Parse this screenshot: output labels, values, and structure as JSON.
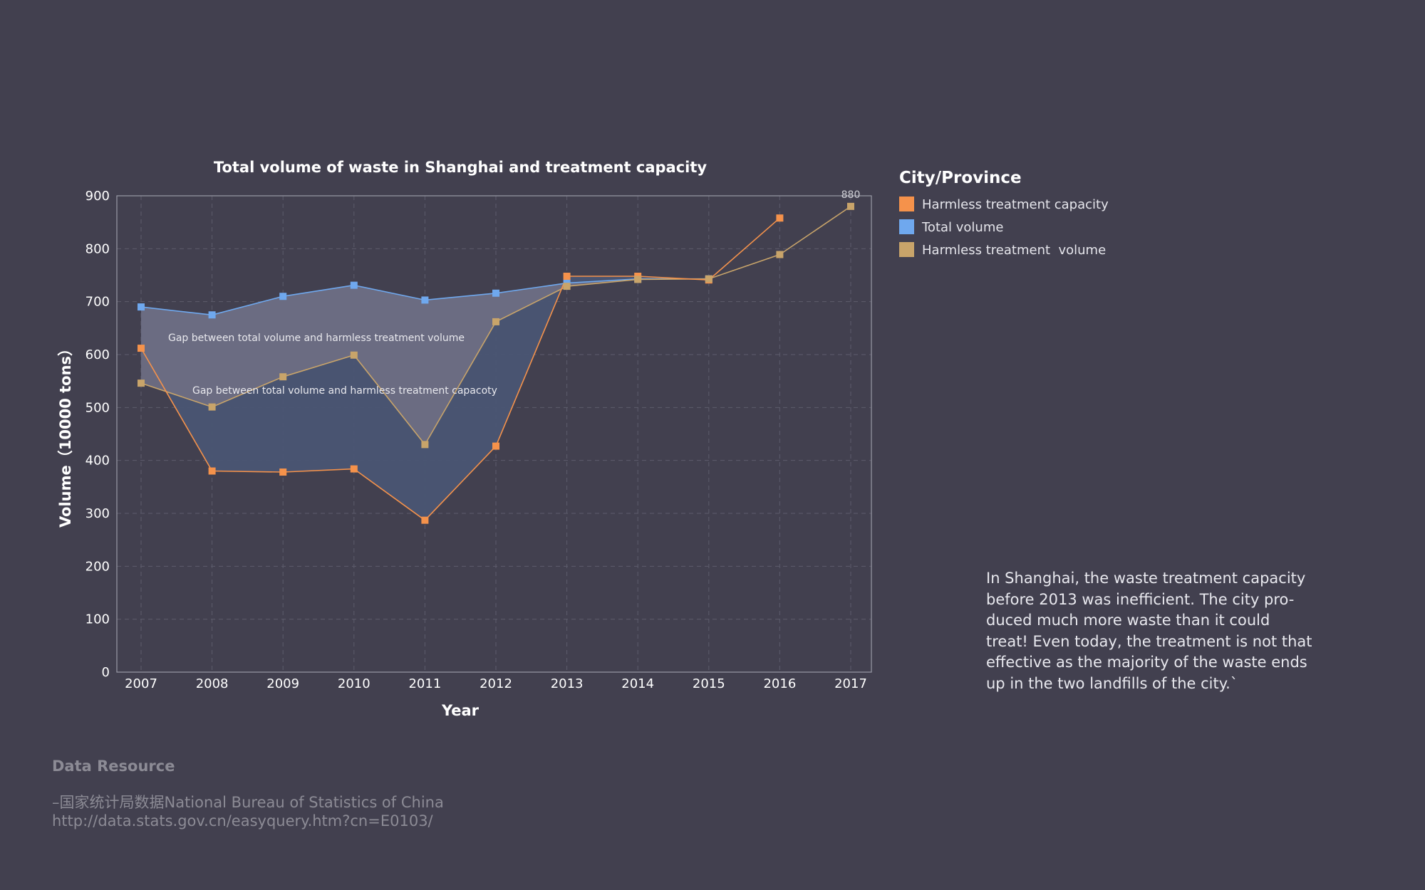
{
  "colors": {
    "background": "#42404f",
    "capacity": "#f5924b",
    "total": "#6fa8ee",
    "treatment": "#c8a46a",
    "gap_total_treatment_fill": "#6f6f84",
    "gap_total_capacity_fill": "#4a5573"
  },
  "chart_data": {
    "type": "line",
    "title": "Total volume of waste in Shanghai and treatment capacity",
    "xlabel": "Year",
    "ylabel": "Volume（10000 tons）",
    "x": [
      "2007",
      "2008",
      "2009",
      "2010",
      "2011",
      "2012",
      "2013",
      "2014",
      "2015",
      "2016",
      "2017"
    ],
    "ylim": [
      0,
      900
    ],
    "yticks": [
      0,
      100,
      200,
      300,
      400,
      500,
      600,
      700,
      800,
      900
    ],
    "grid": true,
    "legend_title": "City/Province",
    "legend_position": "right",
    "series": [
      {
        "name": "Harmless treatment capacity",
        "color": "#f5924b",
        "values": [
          612,
          380,
          378,
          384,
          287,
          427,
          748,
          748,
          741,
          858,
          null
        ]
      },
      {
        "name": "Total volume",
        "color": "#6fa8ee",
        "values": [
          690,
          675,
          710,
          731,
          703,
          716,
          735,
          743,
          743,
          null,
          null
        ]
      },
      {
        "name": "Harmless treatment  volume",
        "color": "#c8a46a",
        "values": [
          546,
          501,
          558,
          599,
          430,
          662,
          729,
          742,
          743,
          789,
          880
        ]
      }
    ],
    "annotations": [
      {
        "text": "Gap between total volume and harmless treatment volume"
      },
      {
        "text": "Gap between total volume and harmless treatment capacoty"
      }
    ],
    "data_labels": [
      {
        "series": "Harmless treatment  volume",
        "x": "2017",
        "text": "880"
      }
    ]
  },
  "description": "In Shanghai, the waste treatment capacity\nbefore 2013 was inefficient. The city pro-\nduced much more waste than it could\ntreat! Even today, the treatment is not that\neffective as the majority of the waste ends\nup in the two landfills of the city.`",
  "source": {
    "heading": "Data Resource",
    "line1": "–国家统计局数据National Bureau of Statistics of China",
    "line2": "http://data.stats.gov.cn/easyquery.htm?cn=E0103/"
  }
}
